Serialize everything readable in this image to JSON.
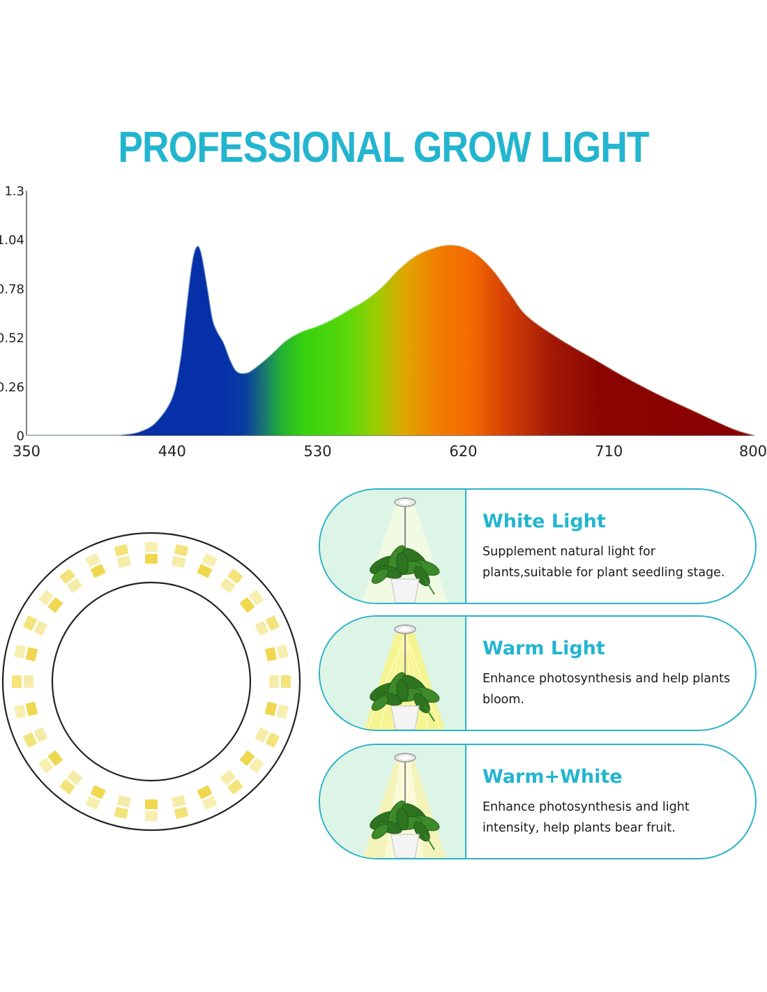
{
  "title": "PROFESSIONAL GROW LIGHT",
  "colors": {
    "accent": "#23b5cf",
    "card_border": "#2bb3c8",
    "image_bg": "#ddf5e6"
  },
  "chart_data": {
    "type": "area",
    "title": "",
    "xlabel": "",
    "ylabel": "",
    "xlim": [
      350,
      800
    ],
    "ylim": [
      0,
      1.3
    ],
    "x_ticks": [
      350,
      440,
      530,
      620,
      710,
      800
    ],
    "y_ticks": [
      0,
      0.26,
      0.52,
      0.78,
      1.04,
      1.3
    ],
    "x_tick_labels": [
      "350",
      "440",
      "530",
      "620",
      "710",
      "800"
    ],
    "y_tick_labels": [
      "0",
      "0.26",
      "0.52",
      "0.78",
      "1.04",
      "1.3"
    ],
    "grid": false,
    "legend": "none",
    "series": [
      {
        "x": [
          350,
          400,
          410,
          420,
          430,
          440,
          445,
          448,
          452,
          455,
          458,
          462,
          465,
          468,
          472,
          476,
          480,
          485,
          490,
          500,
          510,
          520,
          530,
          540,
          550,
          560,
          570,
          580,
          590,
          600,
          610,
          620,
          630,
          640,
          650,
          660,
          680,
          700,
          720,
          740,
          760,
          780,
          790,
          800
        ],
        "y": [
          0,
          0,
          0.004,
          0.02,
          0.07,
          0.2,
          0.4,
          0.62,
          0.9,
          1.0,
          0.97,
          0.78,
          0.62,
          0.55,
          0.49,
          0.4,
          0.34,
          0.33,
          0.35,
          0.42,
          0.5,
          0.55,
          0.58,
          0.62,
          0.67,
          0.72,
          0.79,
          0.88,
          0.95,
          0.99,
          1.01,
          1.0,
          0.95,
          0.86,
          0.74,
          0.63,
          0.51,
          0.41,
          0.31,
          0.22,
          0.14,
          0.06,
          0.025,
          0
        ]
      }
    ]
  },
  "modes": [
    {
      "title": "White Light",
      "description": "Supplement natural light for plants,suitable for plant seedling stage.",
      "beam": "white"
    },
    {
      "title": "Warm Light",
      "description": "Enhance photosynthesis and help plants bloom.",
      "beam": "warm"
    },
    {
      "title": "Warm+White",
      "description": "Enhance photosynthesis and light intensity, help plants bear fruit.",
      "beam": "mixed"
    }
  ]
}
